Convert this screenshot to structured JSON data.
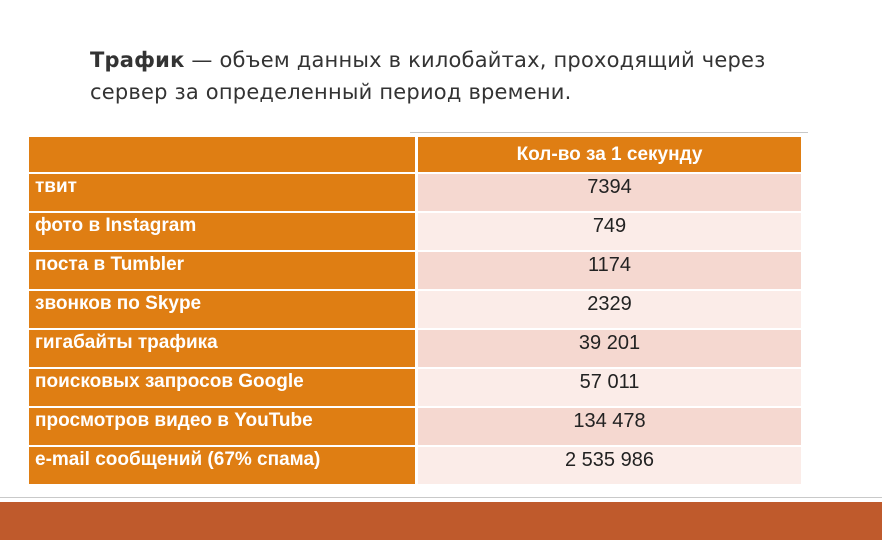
{
  "intro": {
    "term": "Трафик",
    "definition": " — объем данных в килобайтах, проходящий через сервер за определенный период времени."
  },
  "table": {
    "header": {
      "label": "",
      "value": "Кол-во за 1 секунду"
    },
    "rows": [
      {
        "label": "твит",
        "value": "7394"
      },
      {
        "label": "фото в Instagram",
        "value": "749"
      },
      {
        "label": "поста в Tumbler",
        "value": "1174"
      },
      {
        "label": "звонков по Skype",
        "value": "2329"
      },
      {
        "label": "гигабайты трафика",
        "value": "39 201"
      },
      {
        "label": "поисковых запросов Google",
        "value": "57 011"
      },
      {
        "label": "просмотров видео в YouTube",
        "value": "134 478"
      },
      {
        "label": "e-mail сообщений (67% спама)",
        "value": "2 535 986"
      }
    ]
  },
  "colors": {
    "accent_orange": "#df7e13",
    "row_pink_dark": "#f5d8d0",
    "row_pink_light": "#fbece8",
    "footer_bar": "#bf5a2c"
  }
}
